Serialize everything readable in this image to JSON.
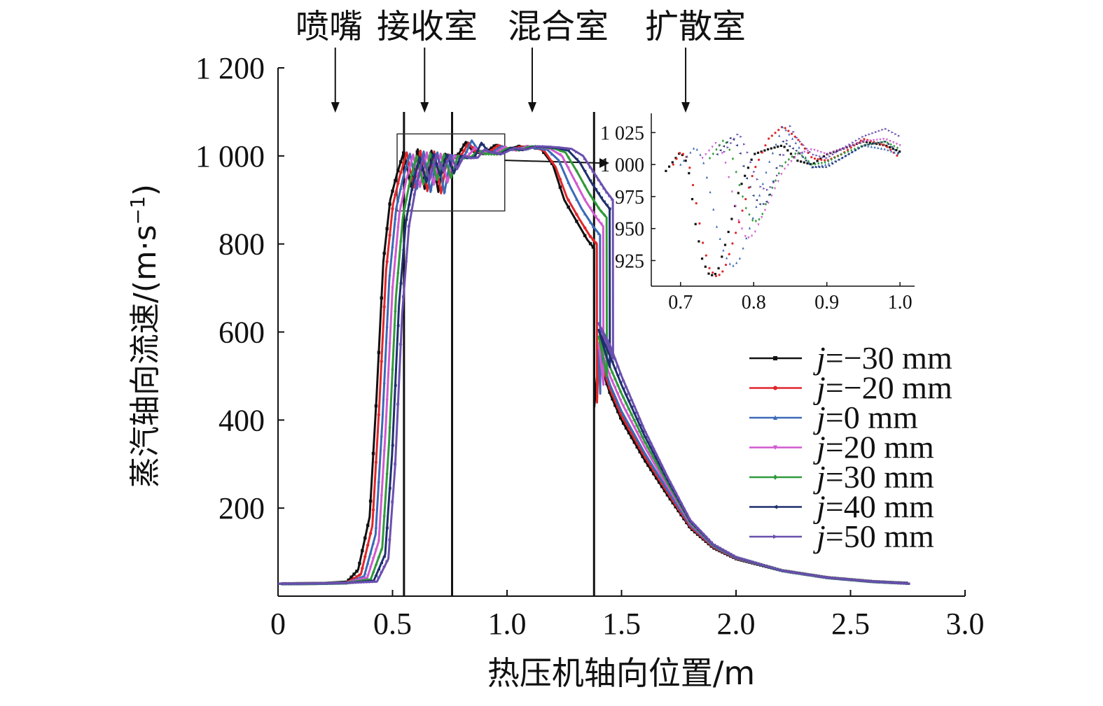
{
  "chart_data": {
    "type": "line",
    "xlabel": "热压机轴向位置/m",
    "ylabel_main": "蒸汽轴向流速/(m·s",
    "ylabel_exp": "−1",
    "ylabel_tail": ")",
    "xlim": [
      0,
      3.0
    ],
    "ylim": [
      0,
      1200
    ],
    "x_ticks": [
      0,
      0.5,
      1.0,
      1.5,
      2.0,
      2.5,
      3.0
    ],
    "x_tick_labels": [
      "0",
      "0.5",
      "1.0",
      "1.5",
      "2.0",
      "2.5",
      "3.0"
    ],
    "y_ticks": [
      200,
      400,
      600,
      800,
      1000,
      1200
    ],
    "y_tick_labels": [
      "200",
      "400",
      "600",
      "800",
      "1 000",
      "1 200"
    ],
    "zones": [
      {
        "label": "喷嘴",
        "arrow_x": 0.25
      },
      {
        "label": "接收室",
        "arrow_x": 0.64
      },
      {
        "label": "混合室",
        "arrow_x": 1.11
      },
      {
        "label": "扩散室",
        "arrow_x": 1.78
      }
    ],
    "section_boundaries_x": [
      0.55,
      0.76,
      1.38
    ],
    "legend_position": "right",
    "series": [
      {
        "name": "=−30 mm",
        "legend_prefix": "j",
        "color": "#111111",
        "marker": "square",
        "shift": 0.0,
        "x": [
          0.0,
          0.2,
          0.3,
          0.35,
          0.4,
          0.43,
          0.46,
          0.49,
          0.52,
          0.55,
          0.58,
          0.61,
          0.64,
          0.67,
          0.7,
          0.73,
          0.76,
          0.79,
          0.82,
          0.85,
          0.9,
          0.95,
          1.0,
          1.05,
          1.1,
          1.15,
          1.2,
          1.25,
          1.3,
          1.35,
          1.38,
          1.381,
          1.4,
          1.45,
          1.5,
          1.6,
          1.7,
          1.8,
          1.9,
          2.0,
          2.2,
          2.4,
          2.6,
          2.8
        ],
        "y": [
          28,
          29,
          32,
          60,
          180,
          450,
          760,
          900,
          960,
          1010,
          930,
          1015,
          925,
          1012,
          918,
          1005,
          995,
          1005,
          1032,
          1010,
          1005,
          1025,
          1015,
          1022,
          1020,
          1015,
          980,
          900,
          855,
          810,
          790,
          430,
          540,
          460,
          400,
          310,
          230,
          155,
          110,
          85,
          58,
          42,
          33,
          28
        ]
      },
      {
        "name": "=−20 mm",
        "legend_prefix": "j",
        "color": "#e0262a",
        "marker": "circle",
        "shift": 0.012,
        "x": [
          0.0,
          0.2,
          0.3,
          0.35,
          0.4,
          0.43,
          0.46,
          0.49,
          0.52,
          0.55,
          0.58,
          0.61,
          0.64,
          0.67,
          0.7,
          0.73,
          0.76,
          0.79,
          0.82,
          0.85,
          0.9,
          0.95,
          1.0,
          1.05,
          1.1,
          1.15,
          1.2,
          1.25,
          1.3,
          1.35,
          1.38,
          1.381,
          1.4,
          1.45,
          1.5,
          1.6,
          1.7,
          1.8,
          1.9,
          2.0,
          2.2,
          2.4,
          2.6,
          2.8
        ],
        "y": [
          28,
          29,
          30,
          50,
          160,
          430,
          740,
          890,
          955,
          1008,
          928,
          1012,
          920,
          1010,
          915,
          1003,
          995,
          1003,
          1030,
          1010,
          1005,
          1024,
          1014,
          1021,
          1020,
          1012,
          975,
          905,
          860,
          818,
          800,
          440,
          550,
          470,
          410,
          318,
          236,
          158,
          112,
          86,
          58,
          42,
          33,
          28
        ]
      },
      {
        "name": "=0 mm",
        "legend_prefix": "j",
        "color": "#3a6ab8",
        "marker": "triangle",
        "shift": 0.026,
        "x": [
          0.0,
          0.2,
          0.3,
          0.35,
          0.4,
          0.43,
          0.46,
          0.49,
          0.52,
          0.55,
          0.58,
          0.61,
          0.64,
          0.67,
          0.7,
          0.73,
          0.76,
          0.79,
          0.82,
          0.85,
          0.9,
          0.95,
          1.0,
          1.05,
          1.1,
          1.15,
          1.2,
          1.25,
          1.3,
          1.35,
          1.38,
          1.381,
          1.4,
          1.45,
          1.5,
          1.6,
          1.7,
          1.8,
          1.9,
          2.0,
          2.2,
          2.4,
          2.6,
          2.8
        ],
        "y": [
          28,
          29,
          30,
          45,
          140,
          400,
          720,
          880,
          950,
          1005,
          925,
          1010,
          918,
          1008,
          915,
          1002,
          995,
          1002,
          1035,
          1012,
          1005,
          1022,
          1013,
          1020,
          1018,
          1014,
          990,
          930,
          880,
          840,
          820,
          460,
          560,
          480,
          420,
          326,
          242,
          162,
          114,
          87,
          58,
          42,
          33,
          28
        ]
      },
      {
        "name": "=20 mm",
        "legend_prefix": "j",
        "color": "#d05ad0",
        "marker": "triangle-down",
        "shift": 0.04,
        "x": [
          0.0,
          0.2,
          0.3,
          0.35,
          0.4,
          0.43,
          0.46,
          0.49,
          0.52,
          0.55,
          0.58,
          0.61,
          0.64,
          0.67,
          0.7,
          0.73,
          0.76,
          0.79,
          0.82,
          0.85,
          0.9,
          0.95,
          1.0,
          1.05,
          1.1,
          1.15,
          1.2,
          1.25,
          1.3,
          1.35,
          1.38,
          1.381,
          1.4,
          1.45,
          1.5,
          1.6,
          1.7,
          1.8,
          1.9,
          2.0,
          2.2,
          2.4,
          2.6,
          2.8
        ],
        "y": [
          28,
          29,
          30,
          42,
          125,
          380,
          700,
          870,
          945,
          1003,
          930,
          1008,
          935,
          1005,
          940,
          1000,
          995,
          1000,
          1018,
          1008,
          1005,
          1020,
          1012,
          1022,
          1020,
          1016,
          1000,
          950,
          900,
          860,
          840,
          480,
          575,
          500,
          440,
          340,
          250,
          165,
          115,
          87,
          58,
          42,
          33,
          28
        ]
      },
      {
        "name": "=30 mm",
        "legend_prefix": "j",
        "color": "#2f9a3a",
        "marker": "diamond",
        "shift": 0.055,
        "x": [
          0.0,
          0.2,
          0.3,
          0.35,
          0.4,
          0.43,
          0.46,
          0.49,
          0.52,
          0.55,
          0.58,
          0.61,
          0.64,
          0.67,
          0.7,
          0.73,
          0.76,
          0.79,
          0.82,
          0.85,
          0.9,
          0.95,
          1.0,
          1.05,
          1.1,
          1.15,
          1.2,
          1.25,
          1.3,
          1.35,
          1.38,
          1.381,
          1.4,
          1.45,
          1.5,
          1.6,
          1.7,
          1.8,
          1.9,
          2.0,
          2.2,
          2.4,
          2.6,
          2.8
        ],
        "y": [
          28,
          29,
          30,
          38,
          110,
          350,
          680,
          860,
          940,
          1000,
          935,
          1006,
          945,
          1004,
          950,
          1000,
          995,
          998,
          1012,
          1005,
          1004,
          1018,
          1013,
          1022,
          1020,
          1017,
          1008,
          965,
          918,
          878,
          860,
          500,
          590,
          520,
          460,
          352,
          258,
          168,
          116,
          88,
          58,
          42,
          33,
          28
        ]
      },
      {
        "name": "=40 mm",
        "legend_prefix": "j",
        "color": "#1f2f6e",
        "marker": "left-triangle",
        "shift": 0.068,
        "x": [
          0.0,
          0.2,
          0.3,
          0.35,
          0.4,
          0.43,
          0.46,
          0.49,
          0.52,
          0.55,
          0.58,
          0.61,
          0.64,
          0.67,
          0.7,
          0.73,
          0.76,
          0.79,
          0.82,
          0.85,
          0.9,
          0.95,
          1.0,
          1.05,
          1.1,
          1.15,
          1.2,
          1.25,
          1.3,
          1.35,
          1.38,
          1.381,
          1.4,
          1.45,
          1.5,
          1.6,
          1.7,
          1.8,
          1.9,
          2.0,
          2.2,
          2.4,
          2.6,
          2.8
        ],
        "y": [
          28,
          29,
          30,
          35,
          95,
          320,
          660,
          850,
          935,
          998,
          940,
          1005,
          955,
          1003,
          960,
          1000,
          995,
          997,
          1030,
          1010,
          1004,
          1018,
          1013,
          1021,
          1020,
          1018,
          1012,
          985,
          940,
          900,
          880,
          520,
          605,
          545,
          480,
          365,
          265,
          170,
          117,
          88,
          58,
          42,
          33,
          28
        ]
      },
      {
        "name": "=50 mm",
        "legend_prefix": "j",
        "color": "#6a4fae",
        "marker": "right-triangle",
        "shift": 0.082,
        "x": [
          0.0,
          0.2,
          0.3,
          0.35,
          0.4,
          0.43,
          0.46,
          0.49,
          0.52,
          0.55,
          0.58,
          0.61,
          0.64,
          0.67,
          0.7,
          0.73,
          0.76,
          0.79,
          0.82,
          0.85,
          0.9,
          0.95,
          1.0,
          1.05,
          1.1,
          1.15,
          1.2,
          1.25,
          1.3,
          1.35,
          1.38,
          1.381,
          1.4,
          1.45,
          1.5,
          1.6,
          1.7,
          1.8,
          1.9,
          2.0,
          2.2,
          2.4,
          2.6,
          2.8
        ],
        "y": [
          28,
          29,
          30,
          33,
          85,
          300,
          640,
          840,
          930,
          996,
          945,
          1004,
          965,
          1002,
          970,
          1000,
          995,
          996,
          1015,
          1008,
          1005,
          1018,
          1014,
          1022,
          1021,
          1019,
          1016,
          1000,
          960,
          920,
          900,
          540,
          620,
          570,
          500,
          378,
          272,
          173,
          118,
          89,
          58,
          42,
          33,
          28
        ]
      }
    ],
    "inset": {
      "xlim": [
        0.66,
        1.02
      ],
      "ylim": [
        905,
        1040
      ],
      "x_ticks": [
        0.7,
        0.8,
        0.9,
        1.0
      ],
      "x_tick_labels": [
        "0.7",
        "0.8",
        "0.9",
        "1.0"
      ],
      "y_ticks": [
        925,
        950,
        975,
        1000,
        1025
      ],
      "y_tick_labels": [
        "925",
        "950",
        "975",
        "1 000",
        "1 025"
      ],
      "zoom_box": {
        "x": [
          0.52,
          0.99
        ],
        "y": [
          875,
          1050
        ]
      },
      "series": [
        {
          "x": [
            0.68,
            0.7,
            0.71,
            0.72,
            0.73,
            0.74,
            0.75,
            0.76,
            0.78,
            0.8,
            0.82,
            0.84,
            0.86,
            0.88,
            0.9,
            0.92,
            0.95,
            0.98,
            1.0
          ],
          "y": [
            995,
            1010,
            1000,
            955,
            925,
            913,
            915,
            935,
            980,
            1008,
            1012,
            1015,
            1003,
            1000,
            1008,
            1012,
            1018,
            1015,
            1010
          ]
        },
        {
          "x": [
            0.69,
            0.7,
            0.71,
            0.72,
            0.73,
            0.74,
            0.75,
            0.76,
            0.78,
            0.8,
            0.82,
            0.84,
            0.86,
            0.88,
            0.9,
            0.92,
            0.95,
            0.98,
            1.0
          ],
          "y": [
            1000,
            1010,
            1005,
            975,
            940,
            918,
            912,
            918,
            955,
            995,
            1020,
            1030,
            1020,
            1005,
            1003,
            1008,
            1020,
            1015,
            1005
          ]
        },
        {
          "x": [
            0.7,
            0.72,
            0.73,
            0.74,
            0.75,
            0.76,
            0.77,
            0.78,
            0.8,
            0.82,
            0.84,
            0.86,
            0.88,
            0.9,
            0.92,
            0.95,
            0.98,
            1.0
          ],
          "y": [
            1000,
            1014,
            1005,
            980,
            950,
            930,
            920,
            925,
            960,
            1000,
            1030,
            1015,
            998,
            1000,
            1005,
            1015,
            1012,
            1008
          ]
        },
        {
          "x": [
            0.73,
            0.75,
            0.76,
            0.77,
            0.78,
            0.79,
            0.8,
            0.82,
            0.84,
            0.86,
            0.88,
            0.9,
            0.92,
            0.95,
            0.98,
            1.0
          ],
          "y": [
            1005,
            1018,
            1005,
            980,
            955,
            942,
            945,
            970,
            995,
            1008,
            1012,
            1008,
            1012,
            1018,
            1020,
            1015
          ]
        },
        {
          "x": [
            0.74,
            0.76,
            0.77,
            0.78,
            0.79,
            0.8,
            0.81,
            0.82,
            0.84,
            0.86,
            0.88,
            0.9,
            0.92,
            0.95,
            0.98,
            1.0
          ],
          "y": [
            1005,
            1020,
            1008,
            985,
            965,
            955,
            958,
            975,
            1000,
            1010,
            1000,
            1002,
            1008,
            1015,
            1018,
            1012
          ]
        },
        {
          "x": [
            0.75,
            0.77,
            0.78,
            0.79,
            0.8,
            0.81,
            0.82,
            0.83,
            0.84,
            0.86,
            0.88,
            0.9,
            0.92,
            0.95,
            0.98,
            1.0
          ],
          "y": [
            1008,
            1022,
            1012,
            990,
            975,
            968,
            972,
            995,
            1018,
            1010,
            998,
            998,
            1005,
            1015,
            1018,
            1008
          ]
        },
        {
          "x": [
            0.76,
            0.78,
            0.79,
            0.8,
            0.81,
            0.82,
            0.83,
            0.84,
            0.85,
            0.86,
            0.88,
            0.9,
            0.92,
            0.95,
            0.98,
            1.0
          ],
          "y": [
            1010,
            1025,
            1012,
            995,
            982,
            980,
            988,
            1005,
            1030,
            1020,
            1008,
            1005,
            1012,
            1022,
            1028,
            1022
          ]
        }
      ]
    }
  }
}
